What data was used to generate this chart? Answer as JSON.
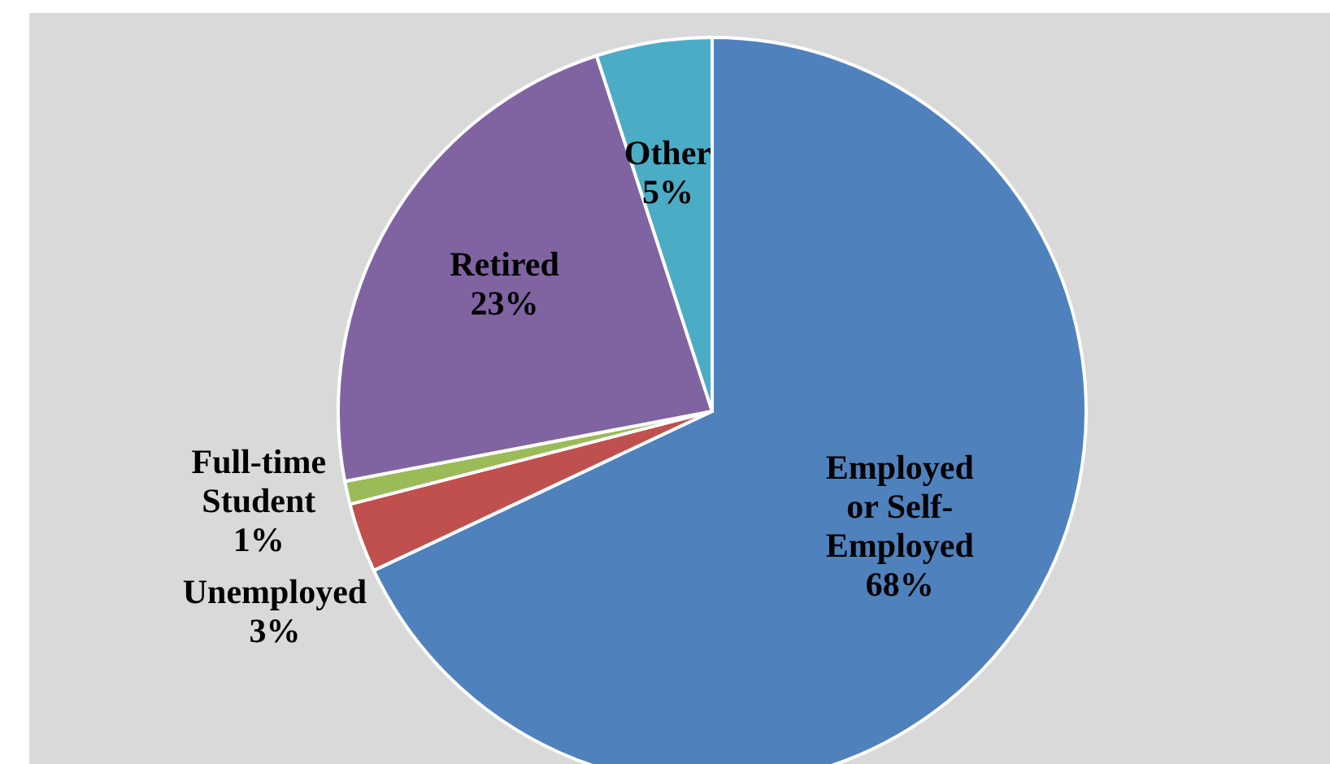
{
  "chart_data": {
    "type": "pie",
    "categories": [
      "Employed or Self-Employed",
      "Unemployed",
      "Full-time Student",
      "Retired",
      "Other"
    ],
    "values": [
      68,
      3,
      1,
      23,
      5
    ],
    "value_labels": [
      "68%",
      "3%",
      "1%",
      "23%",
      "5%"
    ],
    "colors": [
      "#4f81bd",
      "#c0504d",
      "#9bbb59",
      "#8064a2",
      "#4bacc6"
    ],
    "legend": false
  }
}
